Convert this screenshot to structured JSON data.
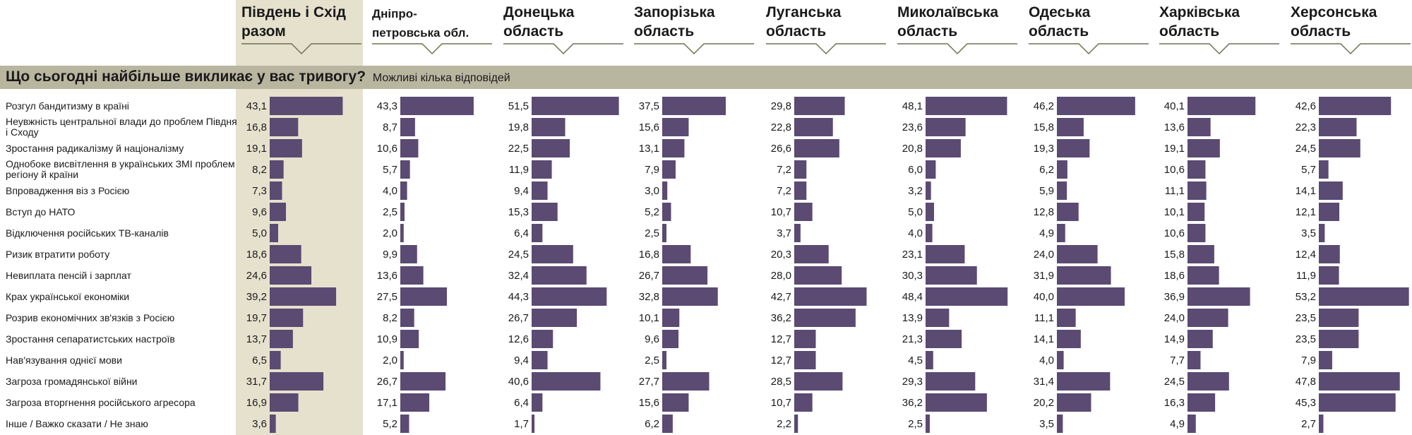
{
  "question": {
    "title": "Що сьогодні найбільше викликає у вас тривогу?",
    "note": "Можливі кілька відповідей"
  },
  "colors": {
    "bar": "#5b4a72",
    "highlight": "#e6e1cd",
    "band": "#b9b6a0"
  },
  "chart_data": {
    "type": "bar",
    "title": "Що сьогодні найбільше викликає у вас тривогу?",
    "subtitle": "Можливі кілька відповідей",
    "categories": [
      "Розгул бандитизму в країні",
      "Неувжність центральної влади до проблем Півдня і Сходу",
      "Зростання радикалізму й націоналізму",
      "Однобоке висвітлення в українських ЗМІ проблем регіону й країни",
      "Впровадження віз з Росією",
      "Вступ до НАТО",
      "Відключення російських ТВ-каналів",
      "Ризик втратити роботу",
      "Невиплата пенсій і зарплат",
      "Крах української економіки",
      "Розрив економічних зв'язків з Росією",
      "Зростання сепаратистських настроїв",
      "Нав'язування однієї мови",
      "Загроза громадянської війни",
      "Загроза вторгнення російського агресора",
      "Інше / Важко сказати / Не знаю"
    ],
    "series": [
      {
        "name": "Південь і Схід разом",
        "values": [
          "43,1",
          "16,8",
          "19,1",
          "8,2",
          "7,3",
          "9,6",
          "5,0",
          "18,6",
          "24,6",
          "39,2",
          "19,7",
          "13,7",
          "6,5",
          "31,7",
          "16,9",
          "3,6"
        ]
      },
      {
        "name": "Дніпро-петровська обл.",
        "values": [
          "43,3",
          "8,7",
          "10,6",
          "5,7",
          "4,0",
          "2,5",
          "2,0",
          "9,9",
          "13,6",
          "27,5",
          "8,2",
          "10,9",
          "2,0",
          "26,7",
          "17,1",
          "5,2"
        ]
      },
      {
        "name": "Донецька область",
        "values": [
          "51,5",
          "19,8",
          "22,5",
          "11,9",
          "9,4",
          "15,3",
          "6,4",
          "24,5",
          "32,4",
          "44,3",
          "26,7",
          "12,6",
          "9,4",
          "40,6",
          "6,4",
          "1,7"
        ]
      },
      {
        "name": "Запорізька область",
        "values": [
          "37,5",
          "15,6",
          "13,1",
          "7,9",
          "3,0",
          "5,2",
          "2,5",
          "16,8",
          "26,7",
          "32,8",
          "10,1",
          "9,6",
          "2,5",
          "27,7",
          "15,6",
          "6,2"
        ]
      },
      {
        "name": "Луганська область",
        "values": [
          "29,8",
          "22,8",
          "26,6",
          "7,2",
          "7,2",
          "10,7",
          "3,7",
          "20,3",
          "28,0",
          "42,7",
          "36,2",
          "12,7",
          "12,7",
          "28,5",
          "10,7",
          "2,2"
        ]
      },
      {
        "name": "Миколаївська область",
        "values": [
          "48,1",
          "23,6",
          "20,8",
          "6,0",
          "3,2",
          "5,0",
          "4,0",
          "23,1",
          "30,3",
          "48,4",
          "13,9",
          "21,3",
          "4,5",
          "29,3",
          "36,2",
          "2,5"
        ]
      },
      {
        "name": "Одеська область",
        "values": [
          "46,2",
          "15,8",
          "19,3",
          "6,2",
          "5,9",
          "12,8",
          "4,9",
          "24,0",
          "31,9",
          "40,0",
          "11,1",
          "14,1",
          "4,0",
          "31,4",
          "20,2",
          "3,5"
        ]
      },
      {
        "name": "Харківська область",
        "values": [
          "40,1",
          "13,6",
          "19,1",
          "10,6",
          "11,1",
          "10,1",
          "10,6",
          "15,8",
          "18,6",
          "36,9",
          "24,0",
          "14,9",
          "7,7",
          "24,5",
          "16,3",
          "4,9"
        ]
      },
      {
        "name": "Херсонська область",
        "values": [
          "42,6",
          "22,3",
          "24,5",
          "5,7",
          "14,1",
          "12,1",
          "3,5",
          "12,4",
          "11,9",
          "53,2",
          "23,5",
          "23,5",
          "7,9",
          "47,8",
          "45,3",
          "2,7"
        ]
      }
    ]
  },
  "headers": [
    "Південь і Схід разом",
    "Дніпро-петровська обл.",
    "Донецька область",
    "Запорізька область",
    "Луганська область",
    "Миколаївська область",
    "Одеська область",
    "Харківська область",
    "Херсонська область"
  ]
}
